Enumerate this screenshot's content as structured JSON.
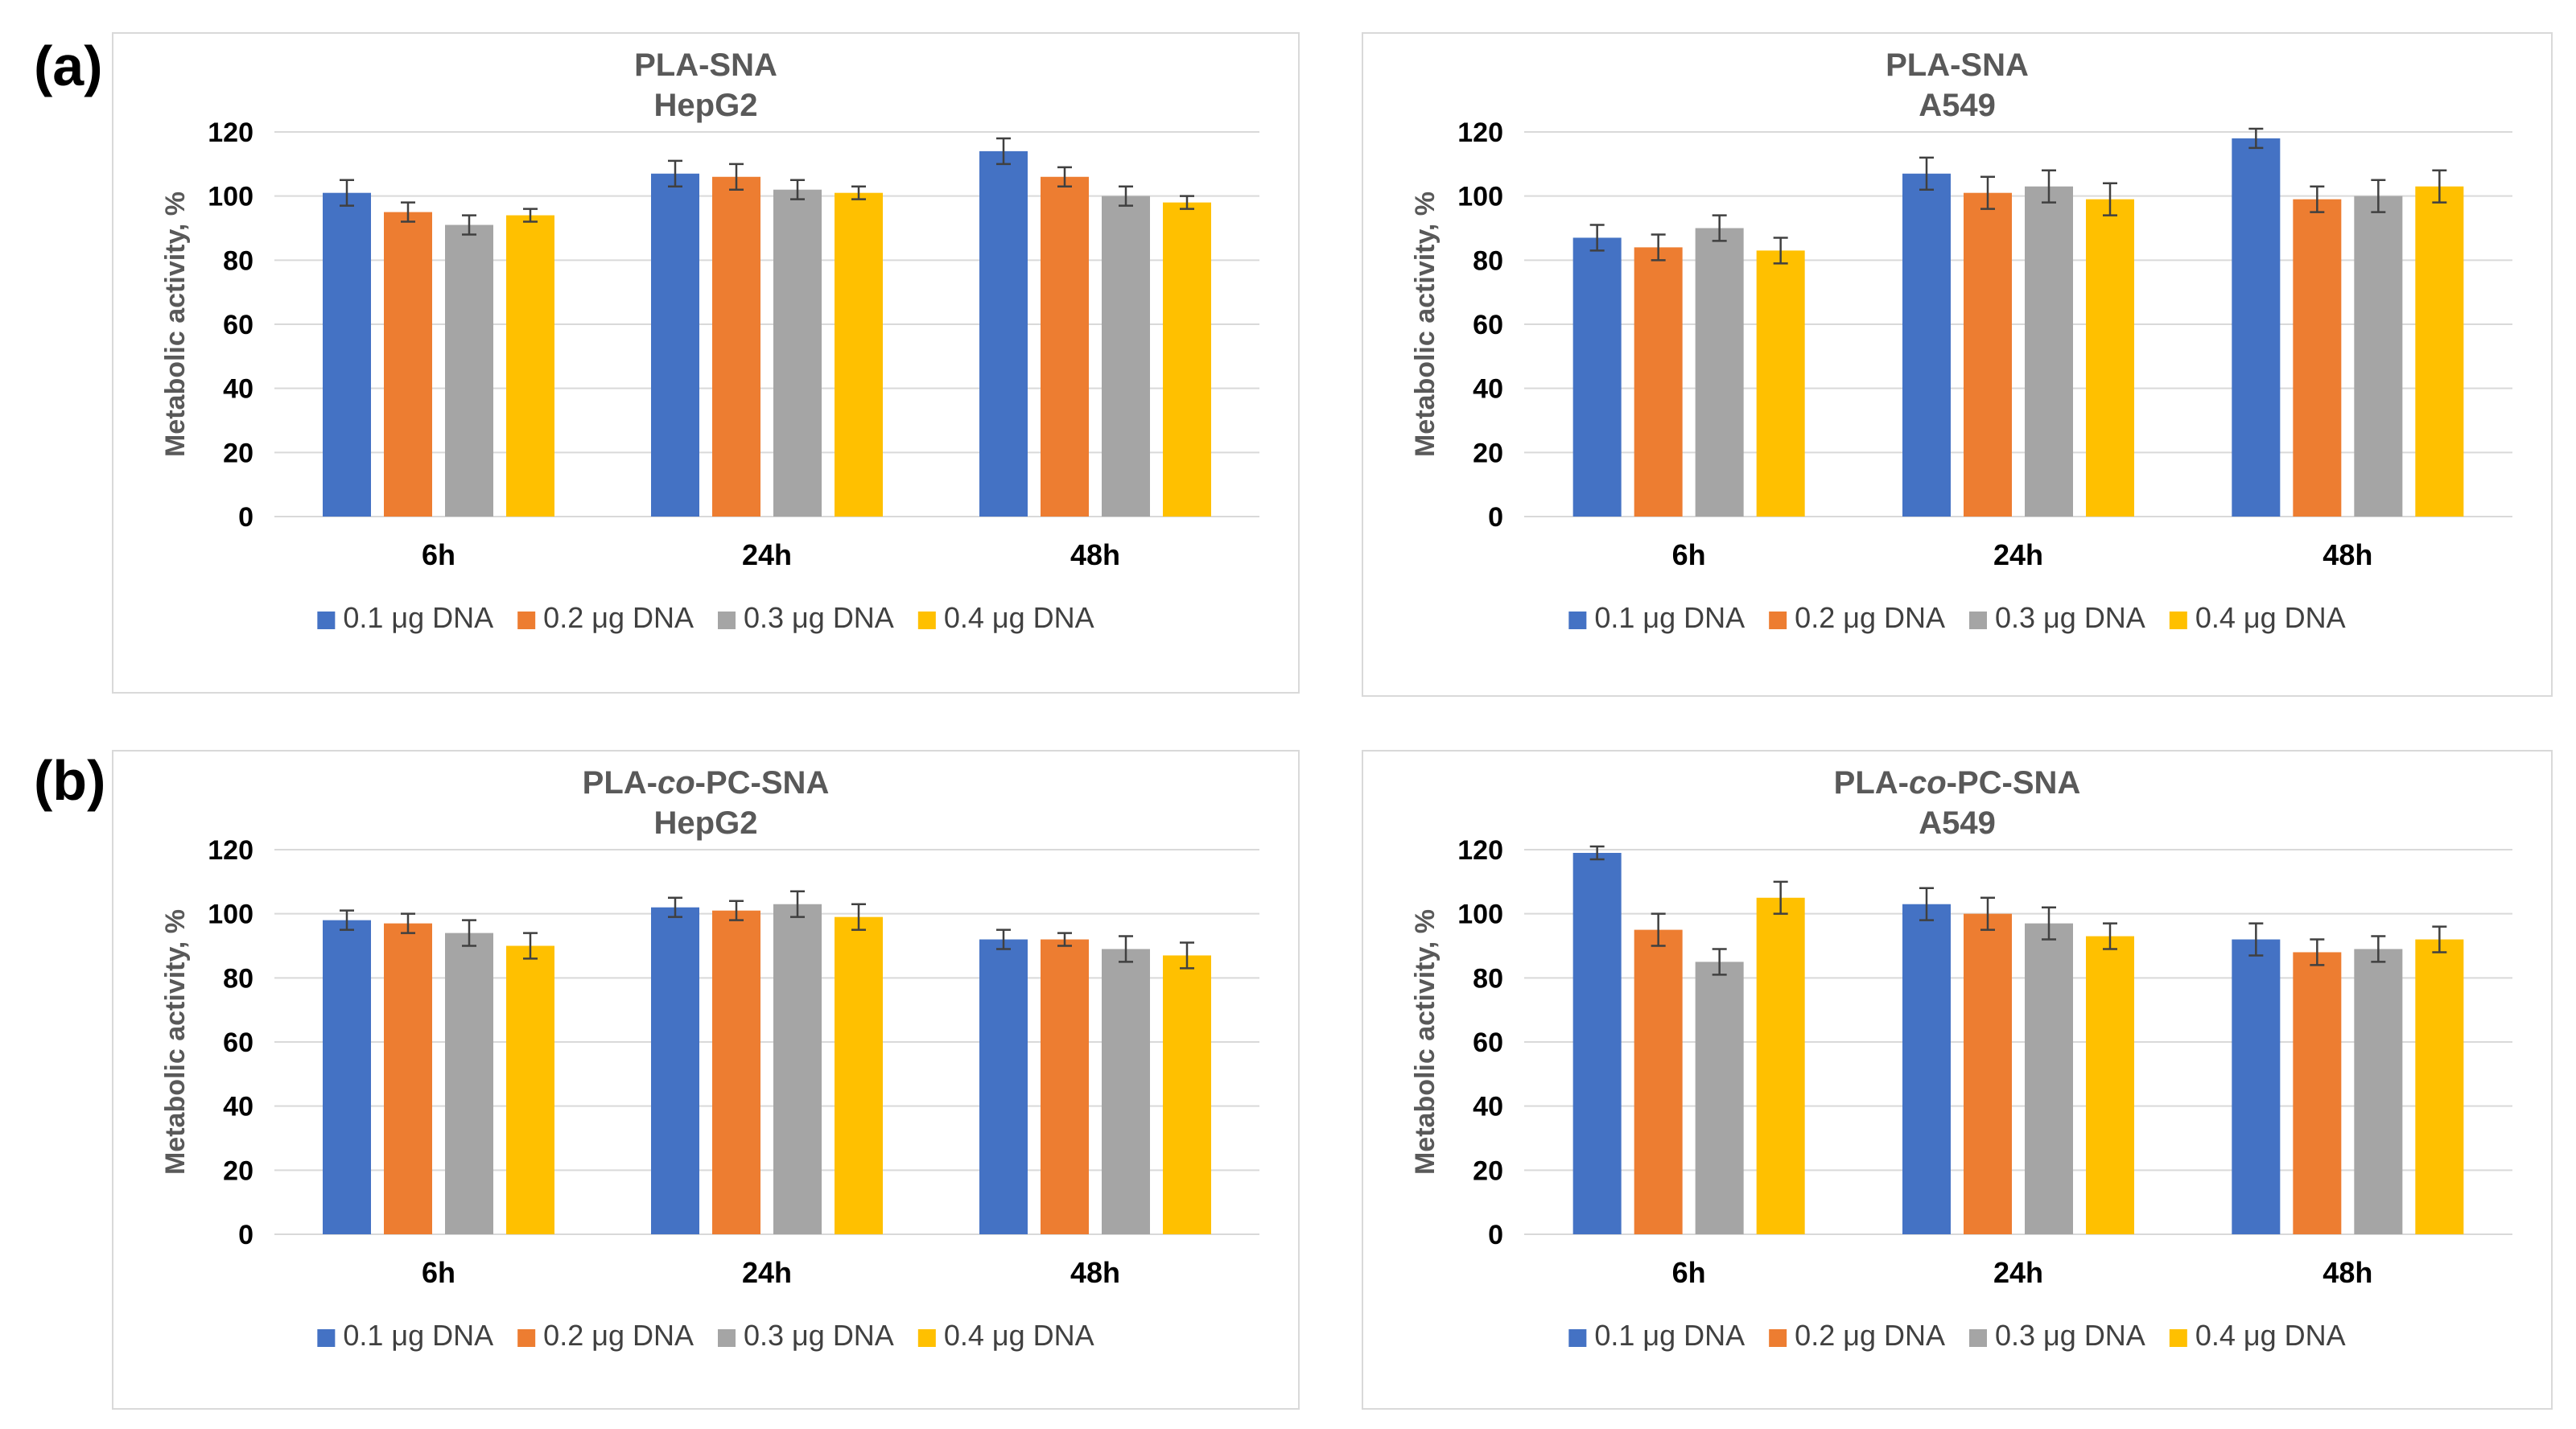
{
  "panel_labels": [
    "(a)",
    "(b)"
  ],
  "colors": {
    "s1": "#4472c4",
    "s2": "#ed7d31",
    "s3": "#a5a5a5",
    "s4": "#ffc000",
    "grid": "#d9d9d9",
    "err": "#404040"
  },
  "chart_data": [
    {
      "type": "bar",
      "title_line1": "PLA-SNA",
      "title_line2": "HepG2",
      "ylabel": "Metabolic activity, %",
      "ylim": [
        0,
        120
      ],
      "yticks": [
        0,
        20,
        40,
        60,
        80,
        100,
        120
      ],
      "categories": [
        "6h",
        "24h",
        "48h"
      ],
      "series": [
        {
          "name": "0.1 μg DNA",
          "values": [
            101,
            107,
            114
          ],
          "errors": [
            4,
            4,
            4
          ]
        },
        {
          "name": "0.2 μg DNA",
          "values": [
            95,
            106,
            106
          ],
          "errors": [
            3,
            4,
            3
          ]
        },
        {
          "name": "0.3 μg DNA",
          "values": [
            91,
            102,
            100
          ],
          "errors": [
            3,
            3,
            3
          ]
        },
        {
          "name": "0.4 μg DNA",
          "values": [
            94,
            101,
            98
          ],
          "errors": [
            2,
            2,
            2
          ]
        }
      ]
    },
    {
      "type": "bar",
      "title_line1": "PLA-SNA",
      "title_line2": "A549",
      "ylabel": "Metabolic activity, %",
      "ylim": [
        0,
        120
      ],
      "yticks": [
        0,
        20,
        40,
        60,
        80,
        100,
        120
      ],
      "categories": [
        "6h",
        "24h",
        "48h"
      ],
      "series": [
        {
          "name": "0.1 μg DNA",
          "values": [
            87,
            107,
            118
          ],
          "errors": [
            4,
            5,
            3
          ]
        },
        {
          "name": "0.2 μg DNA",
          "values": [
            84,
            101,
            99
          ],
          "errors": [
            4,
            5,
            4
          ]
        },
        {
          "name": "0.3 μg DNA",
          "values": [
            90,
            103,
            100
          ],
          "errors": [
            4,
            5,
            5
          ]
        },
        {
          "name": "0.4 μg DNA",
          "values": [
            83,
            99,
            103
          ],
          "errors": [
            4,
            5,
            5
          ]
        }
      ]
    },
    {
      "type": "bar",
      "title_line1": "PLA-",
      "title_italic": "co",
      "title_line1_end": "-PC-SNA",
      "title_line2": "HepG2",
      "ylabel": "Metabolic activity, %",
      "ylim": [
        0,
        120
      ],
      "yticks": [
        0,
        20,
        40,
        60,
        80,
        100,
        120
      ],
      "categories": [
        "6h",
        "24h",
        "48h"
      ],
      "series": [
        {
          "name": "0.1 μg DNA",
          "values": [
            98,
            102,
            92
          ],
          "errors": [
            3,
            3,
            3
          ]
        },
        {
          "name": "0.2 μg DNA",
          "values": [
            97,
            101,
            92
          ],
          "errors": [
            3,
            3,
            2
          ]
        },
        {
          "name": "0.3 μg DNA",
          "values": [
            94,
            103,
            89
          ],
          "errors": [
            4,
            4,
            4
          ]
        },
        {
          "name": "0.4 μg DNA",
          "values": [
            90,
            99,
            87
          ],
          "errors": [
            4,
            4,
            4
          ]
        }
      ]
    },
    {
      "type": "bar",
      "title_line1": "PLA-",
      "title_italic": "co",
      "title_line1_end": "-PC-SNA",
      "title_line2": "A549",
      "ylabel": "Metabolic activity, %",
      "ylim": [
        0,
        120
      ],
      "yticks": [
        0,
        20,
        40,
        60,
        80,
        100,
        120
      ],
      "categories": [
        "6h",
        "24h",
        "48h"
      ],
      "series": [
        {
          "name": "0.1 μg DNA",
          "values": [
            119,
            103,
            92
          ],
          "errors": [
            2,
            5,
            5
          ]
        },
        {
          "name": "0.2 μg DNA",
          "values": [
            95,
            100,
            88
          ],
          "errors": [
            5,
            5,
            4
          ]
        },
        {
          "name": "0.3 μg DNA",
          "values": [
            85,
            97,
            89
          ],
          "errors": [
            4,
            5,
            4
          ]
        },
        {
          "name": "0.4 μg DNA",
          "values": [
            105,
            93,
            92
          ],
          "errors": [
            5,
            4,
            4
          ]
        }
      ]
    }
  ]
}
